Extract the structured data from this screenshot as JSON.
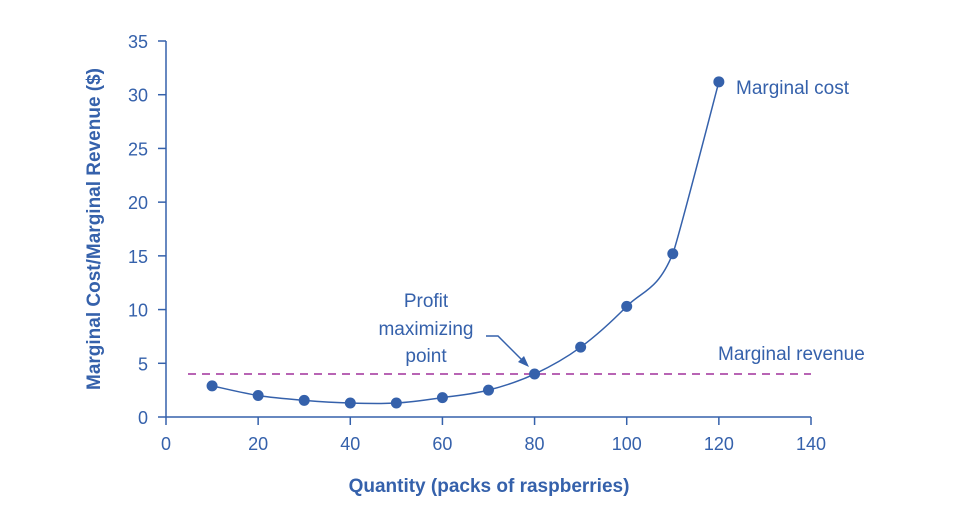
{
  "chart_data": {
    "type": "line",
    "title": "",
    "xlabel": "Quantity (packs of raspberries)",
    "ylabel": "Marginal Cost/Marginal Revenue ($)",
    "xlim": [
      0,
      140
    ],
    "ylim": [
      0,
      35
    ],
    "xticks": [
      0,
      20,
      40,
      60,
      80,
      100,
      120,
      140
    ],
    "yticks": [
      0,
      5,
      10,
      15,
      20,
      25,
      30,
      35
    ],
    "grid": false,
    "series": [
      {
        "name": "Marginal cost",
        "style": "solid-with-markers",
        "color": "#3561ab",
        "x": [
          10,
          20,
          30,
          40,
          50,
          60,
          70,
          80,
          90,
          100,
          110,
          120
        ],
        "y": [
          2.9,
          2.0,
          1.55,
          1.3,
          1.3,
          1.8,
          2.5,
          4.0,
          6.5,
          10.3,
          15.2,
          31.2
        ]
      },
      {
        "name": "Marginal revenue",
        "style": "dashed",
        "color": "#a0309c",
        "x": [
          0,
          120
        ],
        "y": [
          4,
          4
        ]
      }
    ],
    "annotations": [
      {
        "text": [
          "Profit",
          "maximizing",
          "point"
        ],
        "points_to": [
          80,
          4
        ]
      }
    ]
  }
}
